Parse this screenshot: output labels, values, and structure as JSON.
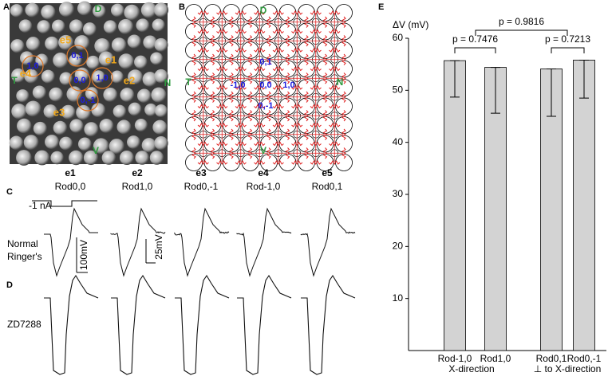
{
  "panel_labels": [
    "A",
    "B",
    "C",
    "D",
    "E"
  ],
  "panel_a": {
    "orientation": [
      "D",
      "T",
      "N",
      "V"
    ],
    "electrodes": [
      "e1",
      "e2",
      "e3",
      "e4",
      "e5"
    ],
    "rods": [
      "0,1",
      "1,0",
      "0,0",
      "1,0",
      "0,-1"
    ]
  },
  "panel_b": {
    "orientation": [
      "D",
      "T",
      "N",
      "V"
    ],
    "rods": [
      "0,1",
      "-1,0",
      "0,0",
      "1,0",
      "0,-1"
    ]
  },
  "traces": {
    "electrodes": [
      "e1",
      "e2",
      "e3",
      "e4",
      "e5"
    ],
    "rods": [
      "Rod0,0",
      "Rod1,0",
      "Rod0,-1",
      "Rod-1,0",
      "Rod0,1"
    ],
    "stimulus": "-1 nA",
    "condition_c": [
      "Normal",
      "Ringer's"
    ],
    "scale_c1": "100mV",
    "scale_c2": "25mV",
    "condition_d": "ZD7288"
  },
  "chart_data": {
    "type": "bar",
    "ylabel": "ΔV (mV)",
    "categories": [
      "Rod-1,0",
      "Rod1,0",
      "Rod0,1",
      "Rod0,-1"
    ],
    "groups": [
      "X-direction",
      "⊥ to X-direction"
    ],
    "values": [
      55.7,
      54.4,
      54.1,
      55.8
    ],
    "errors": [
      7.0,
      8.8,
      9.1,
      7.3
    ],
    "color": "#d3d3d3",
    "ylim": [
      0,
      60
    ],
    "yticks": [
      10,
      20,
      30,
      40,
      50,
      60
    ],
    "annotations": [
      "p = 0.7476",
      "p = 0.7213",
      "p = 0.9816"
    ]
  }
}
